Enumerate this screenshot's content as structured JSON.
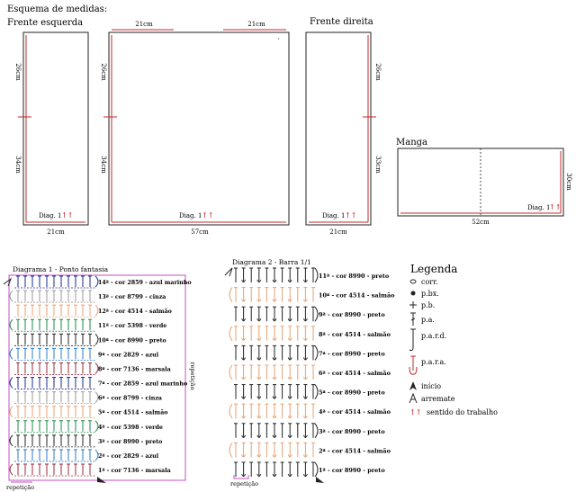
{
  "header": {
    "title": "Esquema de medidas:"
  },
  "pieces": {
    "left_front": {
      "title": "Frente esquerda",
      "height_top": "26cm",
      "height_bottom": "34cm",
      "width": "21cm",
      "diag": "Diag. 1"
    },
    "back": {
      "top_left": "21cm",
      "top_right": "21cm",
      "height_top": "26cm",
      "height_bottom": "34cm",
      "width": "57cm",
      "diag": "Diag. 1"
    },
    "right_front": {
      "title": "Frente direita",
      "height_top": "26cm",
      "height_bottom": "33cm",
      "width": "21cm",
      "diag": "Diag. 1"
    },
    "sleeve": {
      "title": "Manga",
      "height": "30cm",
      "width": "52cm",
      "diag": "Diag. 1"
    }
  },
  "diagram1": {
    "title": "Diagrama 1 - Ponto fantasia",
    "rows": [
      {
        "label": "14ª - cor 2859 - azul marinho",
        "color": "#1a2a8c"
      },
      {
        "label": "13ª - cor 8799 - cinza",
        "color": "#9a9a9a"
      },
      {
        "label": "12ª - cor 4514 - salmão",
        "color": "#e8a070"
      },
      {
        "label": "11ª - cor 5398 - verde",
        "color": "#1e8a4a"
      },
      {
        "label": "10ª - cor 8990 - preto",
        "color": "#222222"
      },
      {
        "label": "9ª - cor 2829 - azul",
        "color": "#2a7ac8"
      },
      {
        "label": "8ª - cor 7136 - marsala",
        "color": "#9a2a3a"
      },
      {
        "label": "7ª - cor 2859 - azul marinho",
        "color": "#1a2a8c"
      },
      {
        "label": "6ª - cor 8799 - cinza",
        "color": "#9a9a9a"
      },
      {
        "label": "5ª - cor 4514 - salmão",
        "color": "#e8a070"
      },
      {
        "label": "4ª - cor 5398 - verde",
        "color": "#1e8a4a"
      },
      {
        "label": "3ª - cor 8990 - preto",
        "color": "#222222"
      },
      {
        "label": "2ª - cor 2829 - azul",
        "color": "#2a7ac8"
      },
      {
        "label": "1ª - cor 7136 - marsala",
        "color": "#9a2a3a"
      }
    ],
    "repeat_side": "repetição",
    "repeat_bottom": "repetição"
  },
  "diagram2": {
    "title": "Diagrama 2 - Barra 1/1",
    "rows": [
      {
        "label": "11ª - cor 8990 - preto",
        "color": "#222222"
      },
      {
        "label": "10ª - cor 4514 - salmão",
        "color": "#e8a070"
      },
      {
        "label": "9ª - cor 8990 - preto",
        "color": "#222222"
      },
      {
        "label": "8ª - cor 4514 - salmão",
        "color": "#e8a070"
      },
      {
        "label": "7ª - cor 8990 - preto",
        "color": "#222222"
      },
      {
        "label": "6ª - cor 4514 - salmão",
        "color": "#e8a070"
      },
      {
        "label": "5ª - cor 8990 - preto",
        "color": "#222222"
      },
      {
        "label": "4ª - cor 4514 - salmão",
        "color": "#e8a070"
      },
      {
        "label": "3ª - cor 8990 - preto",
        "color": "#222222"
      },
      {
        "label": "2ª - cor 4514 - salmão",
        "color": "#e8a070"
      },
      {
        "label": "1ª - cor 8990 - preto",
        "color": "#222222"
      }
    ],
    "repeat_bottom": "repetição"
  },
  "legend": {
    "title": "Legenda",
    "items": [
      {
        "label": "corr.",
        "icon": "chain-stitch-icon"
      },
      {
        "label": "p.bx.",
        "icon": "slip-stitch-icon"
      },
      {
        "label": "p.b.",
        "icon": "single-crochet-icon"
      },
      {
        "label": "p.a.",
        "icon": "double-crochet-icon"
      },
      {
        "label": "p.a.r.d.",
        "icon": "front-post-icon"
      },
      {
        "label": "p.a.r.a.",
        "icon": "back-post-icon"
      },
      {
        "label": "início",
        "icon": "start-arrow-icon"
      },
      {
        "label": "arremate",
        "icon": "fasten-off-icon"
      },
      {
        "label": "sentido do trabalho",
        "icon": "direction-arrows-icon"
      }
    ]
  },
  "colors": {
    "outline": "#222222",
    "measure": "#c0282a",
    "frame": "#c050c0",
    "arrow": "#cc0000"
  }
}
